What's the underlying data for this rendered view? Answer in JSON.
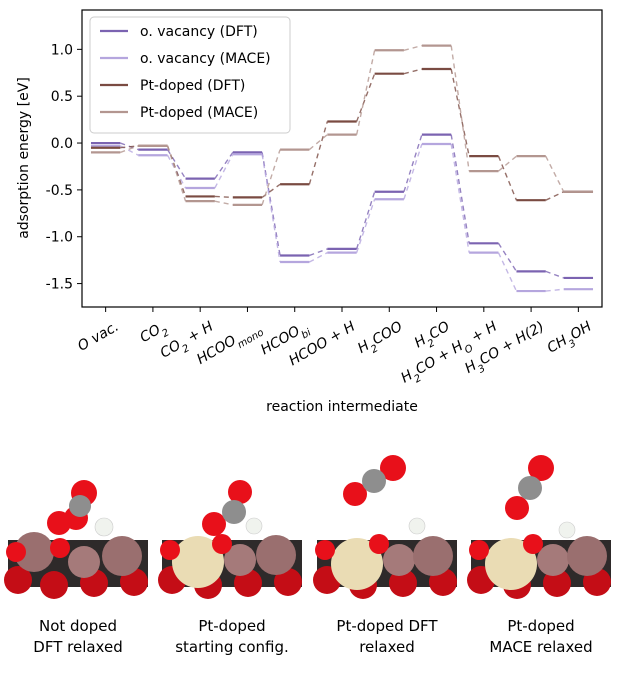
{
  "chart_data": {
    "type": "line",
    "ylabel": "adsorption energy [eV]",
    "xlabel": "reaction intermediate",
    "ylim": [
      -1.75,
      1.42
    ],
    "yticks": [
      "1.0",
      "0.5",
      "0.0",
      "-0.5",
      "-1.0",
      "-1.5"
    ],
    "ytick_values": [
      1.0,
      0.5,
      0.0,
      -0.5,
      -1.0,
      -1.5
    ],
    "categories": [
      {
        "base": "O vac.",
        "sub": "",
        "tail": ""
      },
      {
        "base": "CO",
        "sub": "2",
        "tail": ""
      },
      {
        "base": "CO",
        "sub": "2",
        "tail": " + H"
      },
      {
        "base": "HCOO",
        "sub": "mono",
        "tail": ""
      },
      {
        "base": "HCOO",
        "sub": "bi",
        "tail": ""
      },
      {
        "base": "HCOO + H",
        "sub": "",
        "tail": ""
      },
      {
        "base": "H",
        "sub": "2",
        "tail": "COO"
      },
      {
        "base": "H",
        "sub": "2",
        "tail": "CO"
      },
      {
        "base": "H",
        "sub": "2",
        "tail": "CO + H",
        "sub2": "O",
        "tail2": " + H"
      },
      {
        "base": "H",
        "sub": "3",
        "tail": "CO + H(2)"
      },
      {
        "base": "CH",
        "sub": "3",
        "tail": "OH"
      }
    ],
    "series": [
      {
        "name": "o. vacancy (DFT)",
        "color": "#7b63b1",
        "values": [
          0.0,
          -0.07,
          -0.38,
          -0.1,
          -1.2,
          -1.13,
          -0.52,
          0.09,
          -1.07,
          -1.37,
          -1.44
        ]
      },
      {
        "name": "o. vacancy (MACE)",
        "color": "#b5a6de",
        "values": [
          -0.03,
          -0.13,
          -0.48,
          -0.12,
          -1.27,
          -1.17,
          -0.6,
          -0.01,
          -1.17,
          -1.58,
          -1.56
        ]
      },
      {
        "name": "Pt-doped (DFT)",
        "color": "#7a4b42",
        "values": [
          -0.05,
          -0.03,
          -0.57,
          -0.58,
          -0.44,
          0.23,
          0.74,
          0.79,
          -0.14,
          -0.61,
          -0.52
        ]
      },
      {
        "name": "Pt-doped (MACE)",
        "color": "#b39690",
        "values": [
          -0.1,
          -0.03,
          -0.62,
          -0.66,
          -0.07,
          0.09,
          0.99,
          1.04,
          -0.3,
          -0.14,
          -0.52
        ]
      }
    ]
  },
  "panels": [
    {
      "caption_line1": "Not doped",
      "caption_line2": "DFT relaxed"
    },
    {
      "caption_line1": "Pt-doped",
      "caption_line2": "starting config."
    },
    {
      "caption_line1": "Pt-doped DFT",
      "caption_line2": "relaxed"
    },
    {
      "caption_line1": "Pt-doped",
      "caption_line2": "MACE relaxed"
    }
  ],
  "atom_colors": {
    "oxygen": "#e8101a",
    "carbon": "#8e8e8e",
    "hydrogen": "#f0f3ee",
    "metal": "#9a6f6f",
    "platinum": "#eadcb4",
    "surface": "#3a3a3a"
  }
}
